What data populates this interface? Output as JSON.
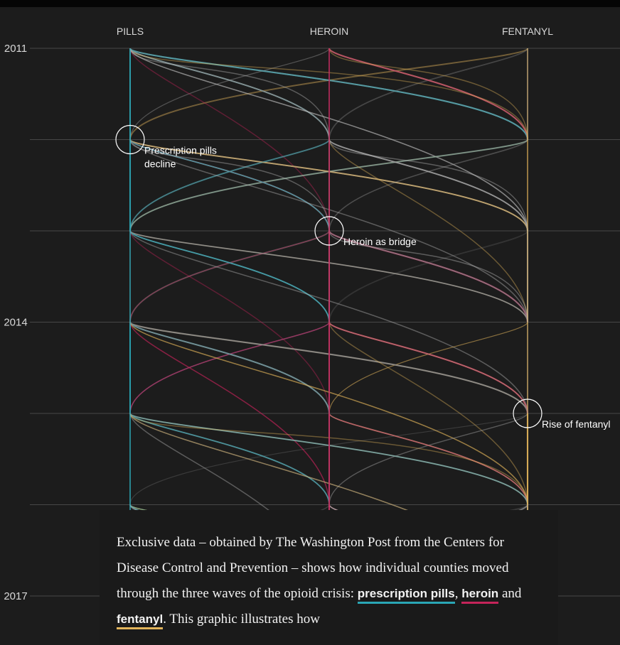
{
  "chart_data": {
    "type": "parallel-flow",
    "columns": [
      "PILLS",
      "HEROIN",
      "FENTANYL"
    ],
    "years": [
      2011,
      2012,
      2013,
      2014,
      2015,
      2016,
      2017
    ],
    "year_labels": [
      "2011",
      "2014",
      "2017"
    ],
    "series_colors": {
      "pills": "#2aa6b5",
      "heroin": "#c5245a",
      "fentanyl": "#e2b45b"
    },
    "annotations": [
      {
        "column": "PILLS",
        "year": 2012,
        "lines": [
          "Prescription pills",
          "decline"
        ]
      },
      {
        "column": "HEROIN",
        "year": 2013,
        "lines": [
          "Heroin as bridge"
        ]
      },
      {
        "column": "FENTANYL",
        "year": 2015,
        "lines": [
          "Rise of fentanyl"
        ]
      }
    ]
  },
  "caption": {
    "part1": "Exclusive data – obtained by The Washington Post from the Centers for Disease Control and Prevention – shows how individual counties moved through the three waves of the opioid crisis: ",
    "pills": "prescription pills",
    "sep1": ", ",
    "heroin": "heroin",
    "sep2": " and ",
    "fentanyl": "fentanyl",
    "part2": ". This graphic illustrates how"
  }
}
